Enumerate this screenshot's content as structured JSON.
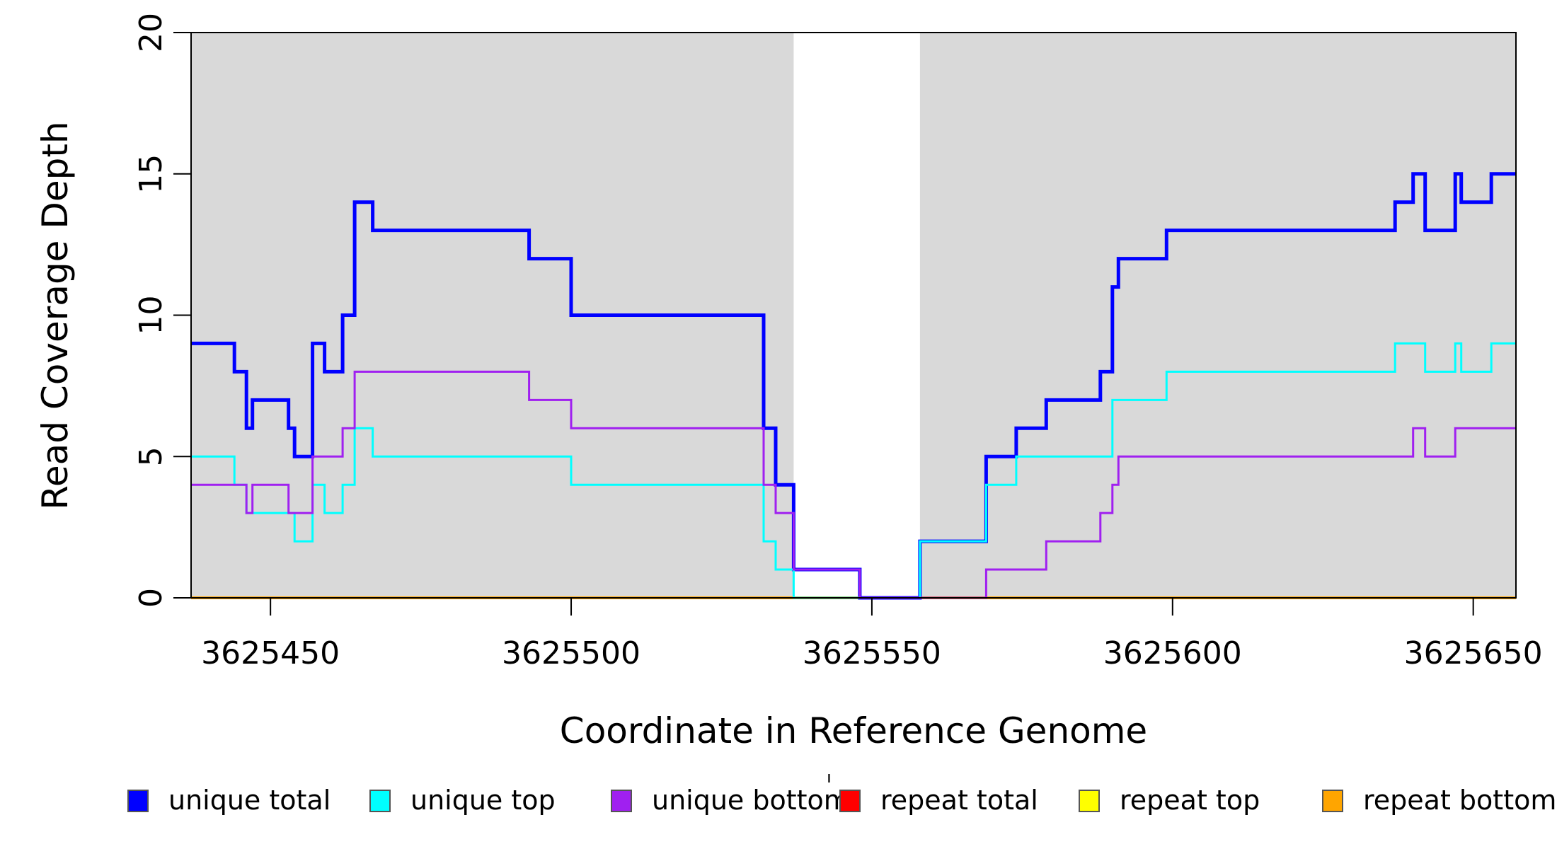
{
  "chart_data": {
    "type": "line",
    "subtype": "step-post",
    "title": "",
    "xlabel": "Coordinate in Reference Genome",
    "ylabel": "Read Coverage Depth",
    "xlim": [
      3625436.8,
      3625657.1
    ],
    "ylim": [
      0,
      20
    ],
    "x_ticks": [
      3625450,
      3625500,
      3625550,
      3625600,
      3625650
    ],
    "x_tick_labels": [
      "3625450",
      "3625500",
      "3625550",
      "3625600",
      "3625650"
    ],
    "y_ticks": [
      0,
      5,
      10,
      15,
      20
    ],
    "y_tick_labels": [
      "0",
      "5",
      "10",
      "15",
      "20"
    ],
    "grid": false,
    "legend_position": "bottom",
    "plot_background": "#ffffff",
    "shaded_region_color": "#d9d9d9",
    "shaded_regions": [
      {
        "x0": 3625436.8,
        "x1": 3625537
      },
      {
        "x0": 3625558,
        "x1": 3625657.1
      }
    ],
    "series": [
      {
        "name": "unique total",
        "color": "#0000ff",
        "line_width": 5,
        "points": [
          [
            3625436.8,
            9
          ],
          [
            3625444,
            8
          ],
          [
            3625446,
            6
          ],
          [
            3625447,
            7
          ],
          [
            3625453,
            6
          ],
          [
            3625454,
            5
          ],
          [
            3625457,
            9
          ],
          [
            3625459,
            8
          ],
          [
            3625462,
            10
          ],
          [
            3625464,
            14
          ],
          [
            3625467,
            13
          ],
          [
            3625493,
            12
          ],
          [
            3625500,
            10
          ],
          [
            3625532,
            6
          ],
          [
            3625534,
            4
          ],
          [
            3625537,
            1
          ],
          [
            3625548,
            0
          ],
          [
            3625558,
            2
          ],
          [
            3625569,
            5
          ],
          [
            3625574,
            6
          ],
          [
            3625579,
            7
          ],
          [
            3625588,
            8
          ],
          [
            3625590,
            11
          ],
          [
            3625591,
            12
          ],
          [
            3625599,
            13
          ],
          [
            3625637,
            14
          ],
          [
            3625640,
            15
          ],
          [
            3625642,
            13
          ],
          [
            3625647,
            15
          ],
          [
            3625648,
            14
          ],
          [
            3625653,
            15
          ]
        ]
      },
      {
        "name": "unique top",
        "color": "#00ffff",
        "line_width": 3,
        "points": [
          [
            3625436.8,
            5
          ],
          [
            3625444,
            4
          ],
          [
            3625446,
            3
          ],
          [
            3625454,
            2
          ],
          [
            3625457,
            4
          ],
          [
            3625459,
            3
          ],
          [
            3625462,
            4
          ],
          [
            3625464,
            6
          ],
          [
            3625467,
            5
          ],
          [
            3625500,
            4
          ],
          [
            3625532,
            2
          ],
          [
            3625534,
            1
          ],
          [
            3625537,
            0
          ],
          [
            3625558,
            2
          ],
          [
            3625569,
            4
          ],
          [
            3625574,
            5
          ],
          [
            3625590,
            7
          ],
          [
            3625599,
            8
          ],
          [
            3625637,
            9
          ],
          [
            3625642,
            8
          ],
          [
            3625647,
            9
          ],
          [
            3625648,
            8
          ],
          [
            3625653,
            9
          ]
        ]
      },
      {
        "name": "unique bottom",
        "color": "#a020f0",
        "line_width": 3,
        "points": [
          [
            3625436.8,
            4
          ],
          [
            3625446,
            3
          ],
          [
            3625447,
            4
          ],
          [
            3625453,
            3
          ],
          [
            3625457,
            5
          ],
          [
            3625462,
            6
          ],
          [
            3625464,
            8
          ],
          [
            3625493,
            7
          ],
          [
            3625500,
            6
          ],
          [
            3625532,
            4
          ],
          [
            3625534,
            3
          ],
          [
            3625537,
            1
          ],
          [
            3625548,
            0
          ],
          [
            3625569,
            1
          ],
          [
            3625579,
            2
          ],
          [
            3625588,
            3
          ],
          [
            3625590,
            4
          ],
          [
            3625591,
            5
          ],
          [
            3625640,
            6
          ],
          [
            3625642,
            5
          ],
          [
            3625647,
            6
          ]
        ]
      },
      {
        "name": "repeat total",
        "color": "#ff0000",
        "line_width": 3,
        "points": [
          [
            3625436.8,
            0
          ]
        ]
      },
      {
        "name": "repeat top",
        "color": "#ffff00",
        "line_width": 3,
        "points": [
          [
            3625436.8,
            0
          ]
        ]
      },
      {
        "name": "repeat bottom",
        "color": "#ffa500",
        "line_width": 4,
        "points": [
          [
            3625436.8,
            0
          ]
        ]
      }
    ],
    "draw_order": [
      3,
      4,
      5,
      0,
      1,
      2
    ]
  },
  "legend": {
    "items": [
      {
        "label": "unique total",
        "color": "#0000ff"
      },
      {
        "label": "unique top",
        "color": "#00ffff"
      },
      {
        "label": "unique bottom",
        "color": "#a020f0"
      },
      {
        "label": "repeat total",
        "color": "#ff0000"
      },
      {
        "label": "repeat top",
        "color": "#ffff00"
      },
      {
        "label": "repeat bottom",
        "color": "#ffa500"
      }
    ]
  }
}
